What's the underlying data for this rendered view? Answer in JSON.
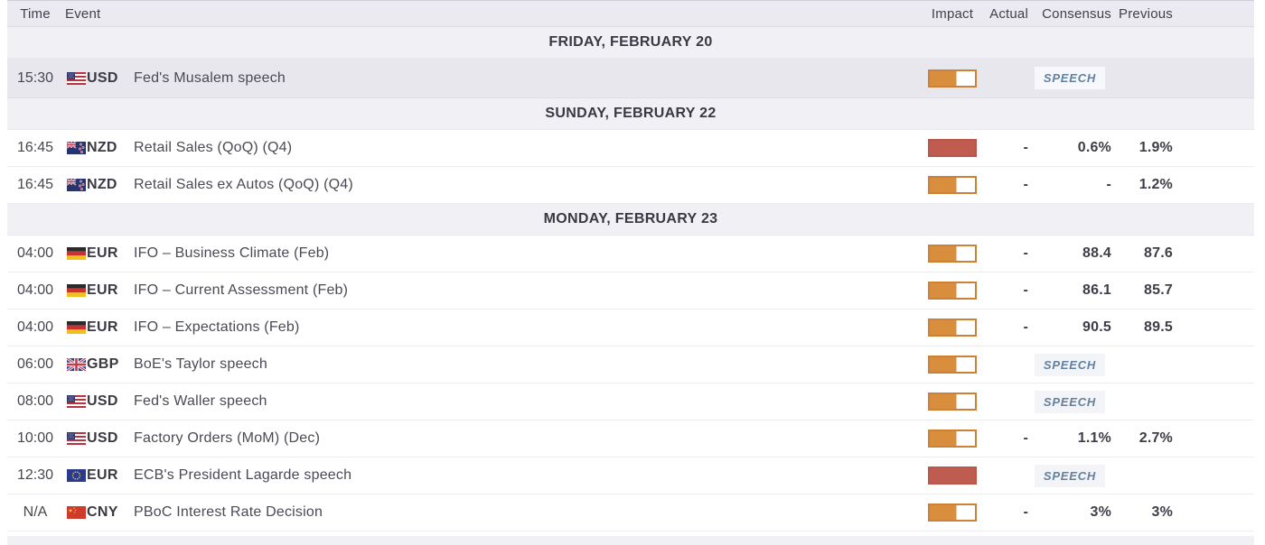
{
  "columns": {
    "time": "Time",
    "event": "Event",
    "impact": "Impact",
    "actual": "Actual",
    "consensus": "Consensus",
    "previous": "Previous"
  },
  "colors": {
    "impact_medium": "#d98e3e",
    "impact_high": "#c05b4f",
    "badge_text": "#64809f",
    "header_bg": "#ebeaf0",
    "date_row_bg": "#f1f0f5",
    "past_row_bg": "#e8e7ed"
  },
  "sections": [
    {
      "date": "FRIDAY, FEBRUARY 20",
      "rows": [
        {
          "time": "15:30",
          "flag": "us",
          "currency": "USD",
          "event": "Fed's Musalem speech",
          "impact": "medium",
          "badge": "SPEECH",
          "actual": "",
          "consensus": "",
          "previous": "",
          "past": true
        }
      ]
    },
    {
      "date": "SUNDAY, FEBRUARY 22",
      "rows": [
        {
          "time": "16:45",
          "flag": "nz",
          "currency": "NZD",
          "event": "Retail Sales (QoQ) (Q4)",
          "impact": "high",
          "actual": "-",
          "consensus": "0.6%",
          "previous": "1.9%"
        },
        {
          "time": "16:45",
          "flag": "nz",
          "currency": "NZD",
          "event": "Retail Sales ex Autos (QoQ) (Q4)",
          "impact": "medium",
          "actual": "-",
          "consensus": "-",
          "previous": "1.2%"
        }
      ]
    },
    {
      "date": "MONDAY, FEBRUARY 23",
      "rows": [
        {
          "time": "04:00",
          "flag": "de",
          "currency": "EUR",
          "event": "IFO – Business Climate (Feb)",
          "impact": "medium",
          "actual": "-",
          "consensus": "88.4",
          "previous": "87.6"
        },
        {
          "time": "04:00",
          "flag": "de",
          "currency": "EUR",
          "event": "IFO – Current Assessment (Feb)",
          "impact": "medium",
          "actual": "-",
          "consensus": "86.1",
          "previous": "85.7"
        },
        {
          "time": "04:00",
          "flag": "de",
          "currency": "EUR",
          "event": "IFO – Expectations (Feb)",
          "impact": "medium",
          "actual": "-",
          "consensus": "90.5",
          "previous": "89.5"
        },
        {
          "time": "06:00",
          "flag": "gb",
          "currency": "GBP",
          "event": "BoE's Taylor speech",
          "impact": "medium",
          "badge": "SPEECH",
          "actual": "",
          "consensus": "",
          "previous": ""
        },
        {
          "time": "08:00",
          "flag": "us",
          "currency": "USD",
          "event": "Fed's Waller speech",
          "impact": "medium",
          "badge": "SPEECH",
          "actual": "",
          "consensus": "",
          "previous": ""
        },
        {
          "time": "10:00",
          "flag": "us",
          "currency": "USD",
          "event": "Factory Orders (MoM) (Dec)",
          "impact": "medium",
          "actual": "-",
          "consensus": "1.1%",
          "previous": "2.7%"
        },
        {
          "time": "12:30",
          "flag": "eu",
          "currency": "EUR",
          "event": "ECB's President Lagarde speech",
          "impact": "high",
          "badge": "SPEECH",
          "actual": "",
          "consensus": "",
          "previous": ""
        },
        {
          "time": "N/A",
          "flag": "cn",
          "currency": "CNY",
          "event": "PBoC Interest Rate Decision",
          "impact": "medium",
          "actual": "-",
          "consensus": "3%",
          "previous": "3%"
        }
      ]
    }
  ]
}
